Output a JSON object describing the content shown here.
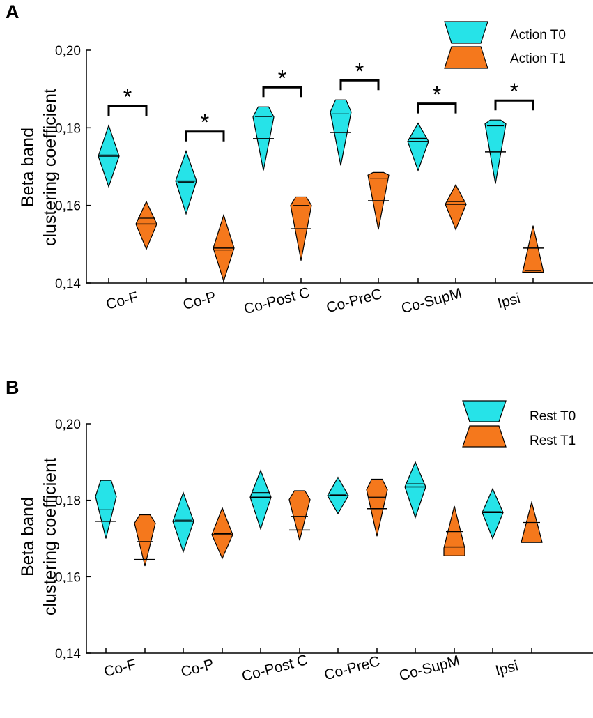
{
  "colors": {
    "t0": "#26e3e8",
    "t1": "#f5781c",
    "axis": "#000000"
  },
  "chart_data": [
    {
      "type": "violin",
      "panel_label": "A",
      "ylabel": [
        "Beta band",
        "clustering coefficient"
      ],
      "ylim": [
        0.14,
        0.2
      ],
      "yticks": [
        0.14,
        0.16,
        0.18,
        0.2
      ],
      "ytick_labels": [
        "0,14",
        "0,16",
        "0,18",
        "0,20"
      ],
      "categories": [
        "Co-F",
        "Co-P",
        "Co-Post C",
        "Co-PreC",
        "Co-SupM",
        "Ipsi"
      ],
      "legend": [
        "Action T0",
        "Action T1"
      ],
      "significance": [
        true,
        true,
        true,
        true,
        true,
        true
      ],
      "significance_marker": "*",
      "series": [
        {
          "name": "Action T0",
          "color_key": "t0",
          "shape": [
            "diamond",
            "diamond",
            "funnel",
            "funnel",
            "diamond",
            "funnel"
          ],
          "min": [
            0.1648,
            0.1578,
            0.169,
            0.1703,
            0.169,
            0.1656
          ],
          "max": [
            0.1806,
            0.174,
            0.1854,
            0.1872,
            0.1812,
            0.182
          ],
          "top": [
            0.1782,
            0.1715,
            0.1828,
            0.1841,
            0.1794,
            0.181
          ],
          "bottom": [
            0.1672,
            0.1605,
            0.17,
            0.172,
            0.1718,
            0.168
          ],
          "median": [
            0.1727,
            0.1663,
            0.1772,
            0.1788,
            0.1765,
            0.1738
          ],
          "mean": [
            0.173,
            0.166,
            0.1829,
            0.1836,
            0.1773,
            0.1805
          ]
        },
        {
          "name": "Action T1",
          "color_key": "t1",
          "shape": [
            "diamond",
            "diamond",
            "funnel",
            "funnel",
            "diamond",
            "triangle"
          ],
          "min": [
            0.1487,
            0.1405,
            0.1458,
            0.1538,
            0.1538,
            0.1428
          ],
          "max": [
            0.161,
            0.1575,
            0.1622,
            0.1685,
            0.1653,
            0.1548
          ],
          "top": [
            0.158,
            0.153,
            0.16,
            0.1678,
            0.1628,
            0.153
          ],
          "bottom": [
            0.1508,
            0.1435,
            0.1478,
            0.156,
            0.1575,
            0.1428
          ],
          "median": [
            0.1552,
            0.149,
            0.154,
            0.1612,
            0.1603,
            0.149
          ],
          "mean": [
            0.1567,
            0.1485,
            0.16,
            0.167,
            0.161,
            0.1432
          ]
        }
      ]
    },
    {
      "type": "violin",
      "panel_label": "B",
      "ylabel": [
        "Beta band",
        "clustering coefficient"
      ],
      "ylim": [
        0.14,
        0.2
      ],
      "yticks": [
        0.14,
        0.16,
        0.18,
        0.2
      ],
      "ytick_labels": [
        "0,14",
        "0,16",
        "0,18",
        "0,20"
      ],
      "categories": [
        "Co-F",
        "Co-P",
        "Co-Post C",
        "Co-PreC",
        "Co-SupM",
        "Ipsi"
      ],
      "legend": [
        "Rest T0",
        "Rest T1"
      ],
      "significance": [
        false,
        false,
        false,
        false,
        false,
        false
      ],
      "significance_marker": "*",
      "series": [
        {
          "name": "Rest T0",
          "color_key": "t0",
          "shape": [
            "funnel",
            "diamond",
            "diamond",
            "diamond",
            "diamond",
            "diamond"
          ],
          "min": [
            0.17,
            0.1665,
            0.1725,
            0.1765,
            0.1755,
            0.17
          ],
          "max": [
            0.1852,
            0.182,
            0.1878,
            0.186,
            0.19,
            0.183
          ],
          "top": [
            0.181,
            0.1795,
            0.185,
            0.184,
            0.187,
            0.1805
          ],
          "bottom": [
            0.1735,
            0.171,
            0.1755,
            0.178,
            0.179,
            0.173
          ],
          "median": [
            0.1745,
            0.1745,
            0.1808,
            0.1812,
            0.1835,
            0.1768
          ],
          "mean": [
            0.1775,
            0.1748,
            0.182,
            0.1814,
            0.1843,
            0.177
          ]
        },
        {
          "name": "Rest T1",
          "color_key": "t1",
          "shape": [
            "funnel",
            "diamond",
            "funnel",
            "funnel",
            "triangle",
            "triangle"
          ],
          "min": [
            0.1628,
            0.1648,
            0.1695,
            0.1706,
            0.1655,
            0.169
          ],
          "max": [
            0.1762,
            0.178,
            0.1825,
            0.1855,
            0.1785,
            0.1795
          ],
          "top": [
            0.174,
            0.1762,
            0.1802,
            0.1828,
            0.176,
            0.1775
          ],
          "bottom": [
            0.164,
            0.1665,
            0.172,
            0.1745,
            0.1675,
            0.169
          ],
          "median": [
            0.1645,
            0.171,
            0.1722,
            0.1778,
            0.1678,
            0.169
          ],
          "mean": [
            0.1692,
            0.1713,
            0.1758,
            0.1808,
            0.1718,
            0.1742
          ]
        }
      ]
    }
  ]
}
